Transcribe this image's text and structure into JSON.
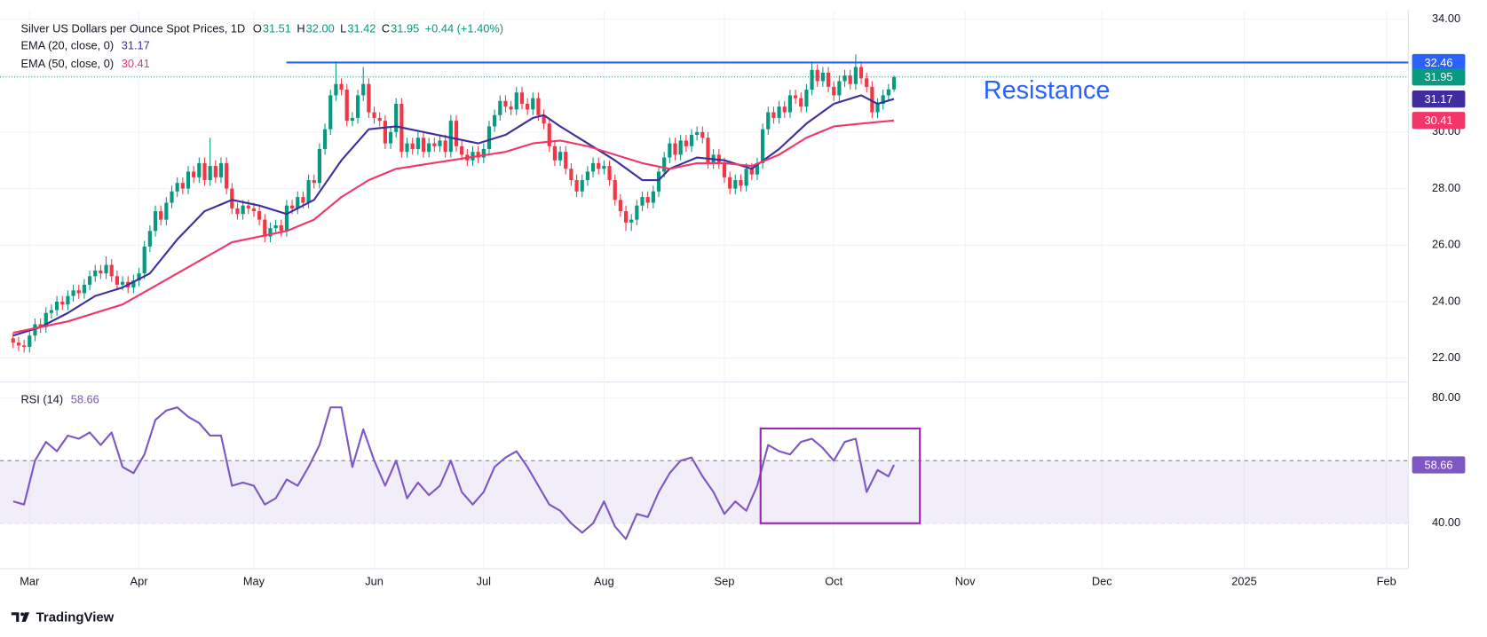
{
  "chart_data": [
    {
      "type": "candlestick",
      "title": "Silver US Dollars per Ounce Spot Prices, 1D",
      "header": [
        {
          "key": "O",
          "value": "31.51"
        },
        {
          "key": "H",
          "value": "32.00"
        },
        {
          "key": "L",
          "value": "31.42"
        },
        {
          "key": "C",
          "value": "31.95"
        },
        {
          "key": "",
          "value": "+0.44 (+1.40%)"
        }
      ],
      "up_color": "#089981",
      "down_color": "#f23645",
      "open": [
        22.7,
        22.55,
        22.45,
        22.4,
        22.8,
        23.2,
        23.1,
        23.6,
        23.7,
        24.0,
        23.9,
        24.2,
        24.4,
        24.3,
        24.6,
        24.9,
        25.1,
        25.0,
        25.3,
        24.9,
        24.6,
        24.7,
        24.5,
        24.75,
        25.0,
        25.95,
        26.5,
        27.2,
        26.9,
        27.5,
        27.9,
        28.2,
        28.0,
        28.6,
        28.4,
        28.9,
        28.3,
        28.8,
        28.4,
        28.9,
        28.0,
        27.3,
        27.1,
        27.4,
        27.3,
        27.2,
        26.9,
        26.3,
        26.6,
        26.7,
        26.5,
        27.4,
        27.3,
        27.7,
        27.5,
        28.3,
        28.2,
        29.4,
        30.1,
        31.3,
        31.7,
        31.5,
        30.4,
        30.5,
        31.3,
        31.7,
        30.7,
        30.5,
        30.4,
        29.6,
        30.0,
        31.0,
        29.3,
        29.6,
        29.4,
        29.8,
        29.3,
        29.6,
        29.5,
        29.7,
        29.3,
        30.4,
        29.5,
        29.2,
        29.0,
        29.3,
        29.1,
        29.4,
        30.2,
        30.6,
        31.1,
        30.9,
        30.8,
        31.4,
        31.0,
        30.8,
        31.2,
        30.6,
        30.3,
        29.5,
        29.0,
        29.3,
        28.7,
        28.3,
        27.9,
        28.3,
        28.6,
        28.9,
        28.7,
        28.8,
        28.3,
        27.6,
        27.2,
        26.8,
        26.9,
        27.4,
        27.7,
        27.5,
        27.9,
        28.6,
        29.1,
        29.6,
        29.2,
        29.7,
        29.5,
        29.9,
        30.0,
        29.8,
        28.9,
        29.2,
        28.9,
        28.4,
        28.0,
        28.3,
        28.1,
        28.7,
        28.5,
        28.9,
        30.1,
        30.7,
        30.5,
        30.9,
        30.7,
        31.3,
        31.2,
        30.9,
        31.5,
        32.2,
        31.8,
        32.1,
        31.6,
        31.3,
        31.8,
        32.0,
        31.7,
        32.3,
        31.9,
        31.6,
        30.7,
        31.0,
        31.3,
        31.51
      ],
      "high": [
        22.9,
        22.75,
        22.65,
        23.0,
        23.4,
        23.4,
        23.8,
        23.9,
        24.2,
        24.2,
        24.4,
        24.6,
        24.6,
        24.8,
        25.1,
        25.3,
        25.3,
        25.6,
        25.5,
        25.1,
        24.9,
        24.9,
        24.95,
        25.2,
        26.15,
        26.7,
        27.4,
        27.4,
        27.7,
        28.1,
        28.4,
        28.4,
        28.8,
        28.8,
        29.1,
        29.1,
        29.8,
        29.0,
        29.1,
        29.1,
        28.2,
        27.5,
        27.6,
        27.6,
        27.5,
        27.4,
        27.1,
        26.8,
        26.9,
        26.9,
        27.6,
        27.6,
        27.9,
        27.9,
        28.5,
        28.5,
        29.6,
        30.3,
        31.5,
        32.5,
        31.9,
        31.7,
        30.7,
        31.5,
        32.3,
        31.9,
        30.9,
        30.7,
        30.6,
        30.2,
        31.2,
        31.2,
        29.8,
        29.8,
        30.0,
        30.0,
        29.8,
        29.8,
        29.9,
        29.9,
        30.6,
        30.6,
        29.7,
        29.4,
        29.5,
        29.5,
        29.6,
        30.4,
        30.8,
        31.3,
        31.3,
        31.1,
        31.6,
        31.6,
        31.2,
        31.4,
        31.4,
        30.8,
        30.5,
        29.7,
        29.5,
        29.5,
        28.9,
        28.5,
        28.5,
        28.8,
        29.1,
        29.1,
        29.0,
        29.0,
        28.5,
        27.8,
        27.4,
        27.1,
        27.6,
        27.9,
        27.9,
        28.1,
        28.8,
        29.3,
        29.8,
        29.8,
        29.9,
        29.9,
        30.1,
        30.2,
        30.2,
        30.0,
        29.4,
        29.4,
        29.1,
        28.6,
        28.5,
        28.5,
        28.9,
        28.9,
        29.1,
        30.3,
        30.9,
        30.9,
        31.1,
        31.1,
        31.5,
        31.5,
        31.4,
        31.7,
        32.5,
        32.4,
        32.3,
        32.3,
        31.8,
        32.0,
        32.2,
        32.2,
        32.75,
        32.5,
        32.1,
        31.8,
        31.2,
        31.5,
        31.7,
        32.0
      ],
      "low": [
        22.35,
        22.25,
        22.2,
        22.2,
        22.6,
        22.9,
        22.9,
        23.4,
        23.5,
        23.7,
        23.7,
        24.0,
        24.1,
        24.1,
        24.4,
        24.7,
        24.8,
        24.8,
        24.7,
        24.4,
        24.4,
        24.3,
        24.3,
        24.55,
        24.8,
        25.75,
        26.3,
        26.7,
        26.7,
        27.3,
        27.7,
        27.8,
        27.8,
        28.2,
        28.2,
        28.1,
        28.1,
        28.2,
        28.2,
        27.8,
        27.1,
        26.9,
        26.9,
        27.1,
        27.0,
        26.7,
        26.1,
        26.1,
        26.4,
        26.3,
        26.3,
        27.1,
        27.1,
        27.3,
        27.3,
        28.0,
        28.0,
        29.2,
        29.9,
        31.1,
        31.3,
        30.2,
        30.2,
        30.3,
        31.1,
        30.5,
        30.3,
        30.2,
        29.4,
        29.4,
        29.8,
        29.1,
        29.1,
        29.2,
        29.2,
        29.1,
        29.1,
        29.3,
        29.3,
        29.1,
        29.1,
        29.3,
        29.0,
        28.8,
        28.8,
        28.9,
        28.9,
        29.2,
        30.0,
        30.4,
        30.7,
        30.6,
        30.6,
        30.8,
        30.6,
        30.6,
        30.4,
        30.1,
        29.3,
        28.8,
        28.8,
        28.5,
        28.1,
        27.7,
        27.7,
        28.1,
        28.4,
        28.5,
        28.5,
        28.1,
        27.4,
        27.0,
        26.5,
        26.5,
        26.7,
        27.2,
        27.3,
        27.3,
        27.7,
        28.4,
        28.9,
        29.0,
        29.0,
        29.3,
        29.3,
        29.7,
        29.6,
        28.7,
        28.7,
        28.7,
        28.2,
        27.8,
        27.8,
        27.9,
        27.9,
        28.3,
        28.3,
        28.7,
        29.9,
        30.3,
        30.3,
        30.5,
        30.5,
        31.0,
        30.7,
        30.7,
        31.3,
        31.6,
        31.6,
        31.4,
        31.1,
        31.1,
        31.6,
        31.5,
        31.5,
        31.7,
        31.4,
        30.5,
        30.5,
        30.8,
        31.1,
        31.42
      ],
      "close": [
        22.55,
        22.45,
        22.4,
        22.8,
        23.2,
        23.1,
        23.6,
        23.7,
        24.0,
        23.9,
        24.2,
        24.4,
        24.3,
        24.6,
        24.9,
        25.1,
        25.0,
        25.3,
        24.9,
        24.6,
        24.7,
        24.5,
        24.75,
        25.0,
        25.95,
        26.5,
        27.2,
        26.9,
        27.5,
        27.9,
        28.2,
        28.0,
        28.6,
        28.4,
        28.9,
        28.3,
        28.8,
        28.4,
        28.9,
        28.0,
        27.3,
        27.1,
        27.4,
        27.3,
        27.2,
        26.9,
        26.3,
        26.6,
        26.7,
        26.5,
        27.4,
        27.3,
        27.7,
        27.5,
        28.3,
        28.2,
        29.4,
        30.1,
        31.3,
        31.7,
        31.5,
        30.4,
        30.5,
        31.3,
        31.7,
        30.7,
        30.5,
        30.4,
        29.6,
        30.0,
        31.0,
        29.3,
        29.6,
        29.4,
        29.8,
        29.3,
        29.6,
        29.5,
        29.7,
        29.3,
        30.4,
        29.5,
        29.2,
        29.0,
        29.3,
        29.1,
        29.4,
        30.2,
        30.6,
        31.1,
        30.9,
        30.8,
        31.4,
        31.0,
        30.8,
        31.2,
        30.6,
        30.3,
        29.5,
        29.0,
        29.3,
        28.7,
        28.3,
        27.9,
        28.3,
        28.6,
        28.9,
        28.7,
        28.8,
        28.3,
        27.6,
        27.2,
        26.8,
        26.9,
        27.4,
        27.7,
        27.5,
        27.9,
        28.6,
        29.1,
        29.6,
        29.2,
        29.7,
        29.5,
        29.9,
        30.0,
        29.8,
        28.9,
        29.2,
        28.9,
        28.4,
        28.0,
        28.3,
        28.1,
        28.7,
        28.5,
        28.9,
        30.1,
        30.7,
        30.5,
        30.9,
        30.7,
        31.3,
        31.2,
        30.9,
        31.5,
        32.2,
        31.8,
        32.1,
        31.6,
        31.3,
        31.8,
        32.0,
        31.7,
        32.3,
        31.9,
        31.6,
        30.7,
        31.0,
        31.3,
        31.51,
        31.95
      ],
      "series": [
        {
          "name": "EMA (20, close, 0)",
          "color": "#3f2e9e",
          "x": [
            0,
            5,
            10,
            15,
            20,
            25,
            30,
            35,
            40,
            45,
            50,
            55,
            60,
            65,
            70,
            75,
            80,
            85,
            90,
            95,
            97,
            100,
            105,
            110,
            115,
            118,
            120,
            125,
            130,
            135,
            140,
            145,
            150,
            155,
            158,
            161
          ],
          "values": [
            22.8,
            23.1,
            23.6,
            24.2,
            24.5,
            25.0,
            26.2,
            27.2,
            27.6,
            27.4,
            27.1,
            27.6,
            29.0,
            30.1,
            30.2,
            30.0,
            29.8,
            29.6,
            29.9,
            30.5,
            30.6,
            30.2,
            29.6,
            29.0,
            28.3,
            28.3,
            28.7,
            29.1,
            29.0,
            28.7,
            29.4,
            30.3,
            31.0,
            31.3,
            31.0,
            31.17
          ]
        },
        {
          "name": "EMA (50, close, 0)",
          "color": "#f23668",
          "x": [
            0,
            10,
            20,
            30,
            40,
            50,
            55,
            60,
            65,
            70,
            80,
            90,
            95,
            100,
            105,
            110,
            115,
            120,
            125,
            130,
            135,
            140,
            145,
            150,
            155,
            161
          ],
          "values": [
            22.9,
            23.3,
            23.9,
            25.0,
            26.1,
            26.5,
            26.9,
            27.7,
            28.3,
            28.7,
            29.0,
            29.3,
            29.6,
            29.7,
            29.5,
            29.2,
            28.9,
            28.7,
            28.9,
            28.9,
            28.8,
            29.2,
            29.8,
            30.2,
            30.3,
            30.41
          ]
        }
      ],
      "resistance": {
        "label": "Resistance",
        "value": 32.46,
        "color": "#2962ff"
      },
      "xlim": [
        -2.4,
        255
      ],
      "xticks": [
        {
          "value": 3,
          "label": "Mar"
        },
        {
          "value": 23,
          "label": "Apr"
        },
        {
          "value": 44,
          "label": "May"
        },
        {
          "value": 66,
          "label": "Jun"
        },
        {
          "value": 86,
          "label": "Jul"
        },
        {
          "value": 108,
          "label": "Aug"
        },
        {
          "value": 130,
          "label": "Sep"
        },
        {
          "value": 150,
          "label": "Oct"
        },
        {
          "value": 174,
          "label": "Nov"
        },
        {
          "value": 199,
          "label": "Dec"
        },
        {
          "value": 225,
          "label": "2025"
        },
        {
          "value": 251,
          "label": "Feb"
        }
      ],
      "ylim": [
        21.19,
        34.27
      ],
      "yticks": [
        {
          "value": 22,
          "label": "22.00"
        },
        {
          "value": 24,
          "label": "24.00"
        },
        {
          "value": 26,
          "label": "26.00"
        },
        {
          "value": 28,
          "label": "28.00"
        },
        {
          "value": 30,
          "label": "30.00"
        },
        {
          "value": 32,
          "label": "32.00"
        },
        {
          "value": 34,
          "label": "34.00"
        }
      ],
      "grid": true
    },
    {
      "type": "line",
      "series": [
        {
          "name": "RSI (14)",
          "color": "#7e57c2",
          "x": [
            0,
            2,
            4,
            6,
            8,
            10,
            12,
            14,
            16,
            18,
            20,
            22,
            24,
            26,
            28,
            30,
            32,
            34,
            36,
            38,
            40,
            42,
            44,
            46,
            48,
            50,
            52,
            54,
            56,
            58,
            60,
            62,
            64,
            66,
            68,
            70,
            72,
            74,
            76,
            78,
            80,
            82,
            84,
            86,
            88,
            90,
            92,
            94,
            96,
            98,
            100,
            102,
            104,
            106,
            108,
            110,
            112,
            114,
            116,
            118,
            120,
            122,
            124,
            126,
            128,
            130,
            132,
            134,
            136,
            138,
            140,
            142,
            144,
            146,
            148,
            150,
            152,
            154,
            156,
            158,
            160,
            161
          ],
          "values": [
            47,
            46,
            60,
            66,
            63,
            68,
            67,
            69,
            65,
            69,
            58,
            56,
            62,
            73,
            76,
            77,
            74,
            72,
            68,
            68,
            52,
            53,
            52,
            46,
            48,
            54,
            52,
            58,
            65,
            77,
            77,
            58,
            70,
            60,
            52,
            60,
            48,
            53,
            49,
            52,
            60,
            50,
            46,
            50,
            58,
            61,
            63,
            58,
            52,
            46,
            44,
            40,
            37,
            40,
            47,
            39,
            35,
            43,
            42,
            50,
            56,
            60,
            61,
            55,
            50,
            43,
            47,
            44,
            52,
            65,
            63,
            62,
            66,
            67,
            64,
            60,
            66,
            67,
            50,
            57,
            55,
            58.66
          ]
        }
      ],
      "band": [
        40,
        60
      ],
      "band_color": "#7e57c2",
      "xlim": [
        -2.4,
        255
      ],
      "ylim": [
        25.5,
        84.5
      ],
      "yticks": [
        {
          "value": 40,
          "label": "40.00"
        },
        {
          "value": 80,
          "label": "80.00"
        }
      ],
      "grid": true
    }
  ],
  "footer": "TradingView"
}
